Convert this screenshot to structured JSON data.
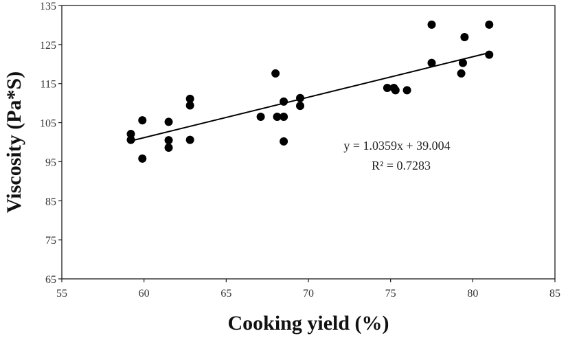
{
  "chart_data": {
    "type": "scatter",
    "xlabel": "Cooking yield (%)",
    "ylabel": "Viscosity (Pa*S)",
    "xlim": [
      55,
      85
    ],
    "ylim": [
      65,
      135
    ],
    "x_ticks": [
      "55",
      "60",
      "65",
      "70",
      "75",
      "80",
      "85"
    ],
    "y_ticks": [
      "65",
      "75",
      "85",
      "95",
      "105",
      "115",
      "125",
      "135"
    ],
    "grid": false,
    "legend": "none",
    "series": [
      {
        "points": [
          {
            "x": 59.2,
            "y": 102.1
          },
          {
            "x": 59.2,
            "y": 100.6
          },
          {
            "x": 59.9,
            "y": 105.6
          },
          {
            "x": 59.9,
            "y": 95.8
          },
          {
            "x": 61.5,
            "y": 105.2
          },
          {
            "x": 61.5,
            "y": 100.5
          },
          {
            "x": 61.5,
            "y": 98.6
          },
          {
            "x": 62.8,
            "y": 111.1
          },
          {
            "x": 62.8,
            "y": 109.4
          },
          {
            "x": 62.8,
            "y": 100.6
          },
          {
            "x": 67.1,
            "y": 106.5
          },
          {
            "x": 68.0,
            "y": 117.6
          },
          {
            "x": 68.1,
            "y": 106.5
          },
          {
            "x": 68.5,
            "y": 110.4
          },
          {
            "x": 68.5,
            "y": 106.5
          },
          {
            "x": 68.5,
            "y": 100.2
          },
          {
            "x": 69.5,
            "y": 111.3
          },
          {
            "x": 69.5,
            "y": 109.3
          },
          {
            "x": 74.8,
            "y": 113.9
          },
          {
            "x": 75.2,
            "y": 113.9
          },
          {
            "x": 75.3,
            "y": 113.3
          },
          {
            "x": 76.0,
            "y": 113.3
          },
          {
            "x": 77.5,
            "y": 130.1
          },
          {
            "x": 77.5,
            "y": 120.3
          },
          {
            "x": 79.3,
            "y": 117.6
          },
          {
            "x": 79.4,
            "y": 120.3
          },
          {
            "x": 79.5,
            "y": 126.9
          },
          {
            "x": 81.0,
            "y": 130.1
          },
          {
            "x": 81.0,
            "y": 122.4
          }
        ],
        "color": "#000000"
      }
    ],
    "trendline": {
      "slope": 1.0359,
      "intercept": 39.004,
      "x_range": [
        59.2,
        81.0
      ],
      "color": "#000000"
    },
    "annotations": [
      "y = 1.0359x + 39.004",
      "R² = 0.7283"
    ]
  }
}
